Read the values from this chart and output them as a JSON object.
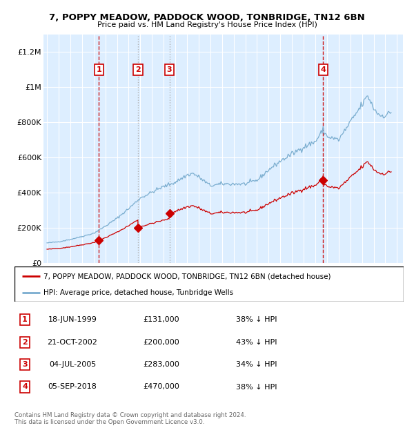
{
  "title": "7, POPPY MEADOW, PADDOCK WOOD, TONBRIDGE, TN12 6BN",
  "subtitle": "Price paid vs. HM Land Registry's House Price Index (HPI)",
  "property_label": "7, POPPY MEADOW, PADDOCK WOOD, TONBRIDGE, TN12 6BN (detached house)",
  "hpi_label": "HPI: Average price, detached house, Tunbridge Wells",
  "footnote": "Contains HM Land Registry data © Crown copyright and database right 2024.\nThis data is licensed under the Open Government Licence v3.0.",
  "property_color": "#cc0000",
  "hpi_color": "#7aadcf",
  "background_color": "#ddeeff",
  "purchases": [
    {
      "num": 1,
      "date": "18-JUN-1999",
      "price": 131000,
      "pct": "38% ↓ HPI",
      "year": 1999.46,
      "vline_color": "#cc0000"
    },
    {
      "num": 2,
      "date": "21-OCT-2002",
      "price": 200000,
      "pct": "43% ↓ HPI",
      "year": 2002.8,
      "vline_color": "#aaaaaa"
    },
    {
      "num": 3,
      "date": "04-JUL-2005",
      "price": 283000,
      "pct": "34% ↓ HPI",
      "year": 2005.5,
      "vline_color": "#aaaaaa"
    },
    {
      "num": 4,
      "date": "05-SEP-2018",
      "price": 470000,
      "pct": "38% ↓ HPI",
      "year": 2018.67,
      "vline_color": "#cc0000"
    }
  ],
  "ylim": [
    0,
    1300000
  ],
  "xlim": [
    1994.7,
    2025.5
  ],
  "yticks": [
    0,
    200000,
    400000,
    600000,
    800000,
    1000000,
    1200000
  ],
  "ytick_labels": [
    "£0",
    "£200K",
    "£400K",
    "£600K",
    "£800K",
    "£1M",
    "£1.2M"
  ],
  "xticks": [
    1995,
    1996,
    1997,
    1998,
    1999,
    2000,
    2001,
    2002,
    2003,
    2004,
    2005,
    2006,
    2007,
    2008,
    2009,
    2010,
    2011,
    2012,
    2013,
    2014,
    2015,
    2016,
    2017,
    2018,
    2019,
    2020,
    2021,
    2022,
    2023,
    2024,
    2025
  ]
}
